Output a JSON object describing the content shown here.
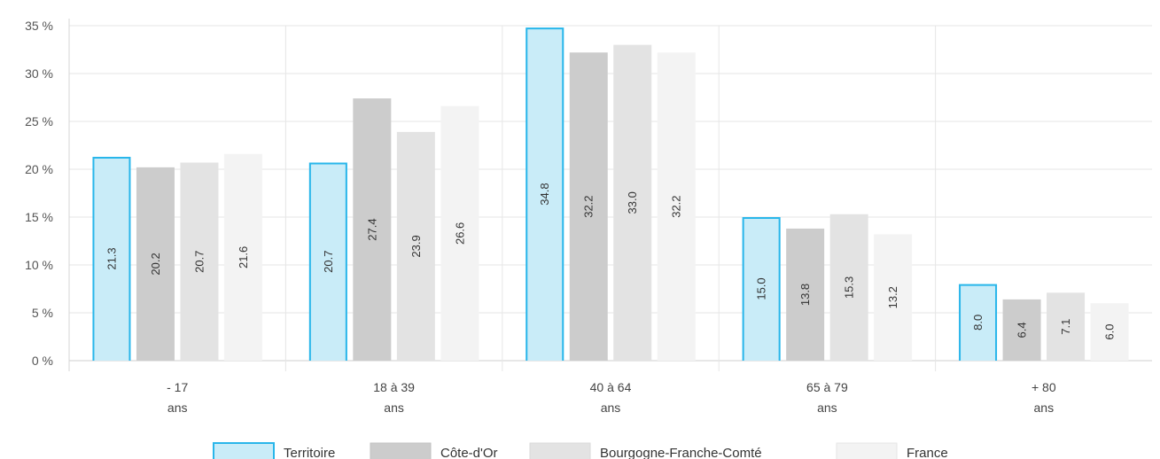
{
  "chart_data": {
    "type": "bar",
    "categories": [
      {
        "line1": "- 17",
        "line2": "ans"
      },
      {
        "line1": "18 à 39",
        "line2": "ans"
      },
      {
        "line1": "40 à 64",
        "line2": "ans"
      },
      {
        "line1": "65 à 79",
        "line2": "ans"
      },
      {
        "line1": "+ 80",
        "line2": "ans"
      }
    ],
    "series": [
      {
        "name": "Territoire",
        "values": [
          21.3,
          20.7,
          34.8,
          15.0,
          8.0
        ],
        "labels": [
          "21.3",
          "20.7",
          "34.8",
          "15.0",
          "8.0"
        ],
        "color": "#c9ecf8",
        "stroke": "#29b6ea"
      },
      {
        "name": "Côte-d'Or",
        "values": [
          20.2,
          27.4,
          32.2,
          13.8,
          6.4
        ],
        "labels": [
          "20.2",
          "27.4",
          "32.2",
          "13.8",
          "6.4"
        ],
        "color": "#cccccc",
        "stroke": "#c2c2c2"
      },
      {
        "name": "Bourgogne-Franche-Comté",
        "values": [
          20.7,
          23.9,
          33.0,
          15.3,
          7.1
        ],
        "labels": [
          "20.7",
          "23.9",
          "33.0",
          "15.3",
          "7.1"
        ],
        "color": "#e3e3e3",
        "stroke": "#d9d9d9"
      },
      {
        "name": "France",
        "values": [
          21.6,
          26.6,
          32.2,
          13.2,
          6.0
        ],
        "labels": [
          "21.6",
          "26.6",
          "32.2",
          "13.2",
          "6.0"
        ],
        "color": "#f3f3f3",
        "stroke": "#e6e6e6"
      }
    ],
    "y_ticks": [
      0,
      5,
      10,
      15,
      20,
      25,
      30,
      35
    ],
    "y_tick_labels": [
      "0 %",
      "5 %",
      "10 %",
      "15 %",
      "20 %",
      "25 %",
      "30 %",
      "35 %"
    ],
    "ylim": [
      0,
      35
    ],
    "grid": true,
    "legend_position": "bottom-center"
  }
}
